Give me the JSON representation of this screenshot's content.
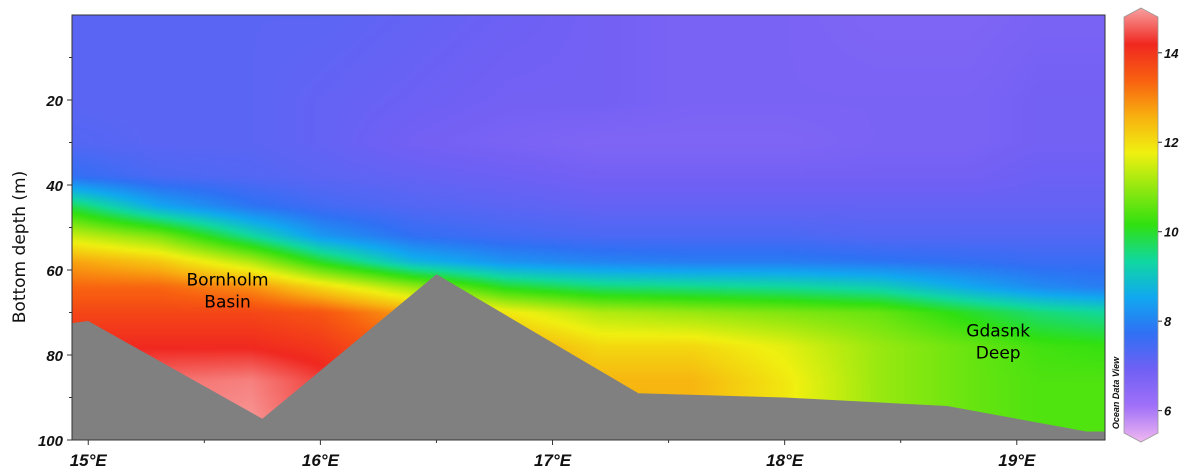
{
  "chart_data": {
    "type": "heatmap",
    "title": "",
    "xlabel": "",
    "ylabel": "Bottom depth (m)",
    "xlim": [
      14.93,
      19.38
    ],
    "ylim": [
      100,
      0
    ],
    "x_ticks": [
      {
        "value": 15,
        "label": "15°E"
      },
      {
        "value": 16,
        "label": "16°E"
      },
      {
        "value": 17,
        "label": "17°E"
      },
      {
        "value": 18,
        "label": "18°E"
      },
      {
        "value": 19,
        "label": "19°E"
      }
    ],
    "y_ticks": [
      {
        "value": 20,
        "label": "20"
      },
      {
        "value": 40,
        "label": "40"
      },
      {
        "value": 60,
        "label": "60"
      },
      {
        "value": 80,
        "label": "80"
      },
      {
        "value": 100,
        "label": "100"
      }
    ],
    "colorbar": {
      "range": [
        5.5,
        14.8
      ],
      "ticks": [
        {
          "value": 6,
          "label": "6"
        },
        {
          "value": 8,
          "label": "8"
        },
        {
          "value": 10,
          "label": "10"
        },
        {
          "value": 12,
          "label": "12"
        },
        {
          "value": 14,
          "label": "14"
        }
      ],
      "colors": [
        "#f0b8f0",
        "#a070f8",
        "#7060f4",
        "#3070f4",
        "#10a8f0",
        "#10d8a0",
        "#30e010",
        "#90e810",
        "#f0f010",
        "#f8b010",
        "#f86010",
        "#f02820",
        "#f8a0a0"
      ]
    },
    "field": {
      "columns_lon": [
        14.93,
        15.3,
        15.7,
        16.0,
        16.4,
        16.8,
        17.2,
        17.6,
        18.0,
        18.4,
        18.8,
        19.1,
        19.38
      ],
      "layers": [
        {
          "depth": 0,
          "values": [
            7.3,
            7.3,
            7.3,
            7.3,
            7.2,
            7.1,
            7.0,
            6.9,
            6.9,
            6.8,
            6.8,
            6.9,
            6.9
          ]
        },
        {
          "depth": 20,
          "values": [
            7.3,
            7.3,
            7.3,
            7.2,
            7.1,
            7.0,
            7.0,
            6.9,
            6.9,
            6.9,
            6.9,
            7.0,
            7.0
          ]
        },
        {
          "depth": 30,
          "values": [
            7.4,
            7.3,
            7.3,
            7.2,
            7.0,
            6.9,
            6.8,
            6.8,
            6.8,
            6.9,
            6.9,
            7.0,
            7.0
          ]
        },
        {
          "depth": 38,
          "values": [
            7.8,
            7.5,
            7.4,
            7.3,
            7.2,
            7.1,
            7.0,
            7.0,
            7.0,
            7.0,
            7.0,
            7.1,
            7.1
          ]
        },
        {
          "depth": 45,
          "values": [
            9.8,
            8.6,
            7.9,
            7.6,
            7.4,
            7.3,
            7.2,
            7.2,
            7.2,
            7.2,
            7.2,
            7.2,
            7.2
          ]
        },
        {
          "depth": 52,
          "values": [
            11.4,
            10.8,
            9.4,
            8.4,
            7.8,
            7.6,
            7.5,
            7.5,
            7.5,
            7.4,
            7.4,
            7.4,
            7.4
          ]
        },
        {
          "depth": 58,
          "values": [
            12.6,
            12.2,
            11.2,
            10.0,
            8.8,
            8.3,
            8.1,
            8.0,
            8.0,
            7.9,
            7.8,
            7.7,
            7.7
          ]
        },
        {
          "depth": 64,
          "values": [
            13.2,
            13.2,
            12.8,
            12.0,
            11.0,
            10.0,
            9.6,
            9.5,
            9.4,
            9.2,
            8.6,
            8.2,
            8.0
          ]
        },
        {
          "depth": 70,
          "values": [
            13.6,
            13.6,
            13.6,
            13.4,
            12.6,
            11.8,
            11.2,
            11.0,
            10.8,
            10.6,
            10.0,
            9.6,
            9.4
          ]
        },
        {
          "depth": 78,
          "values": [
            14.0,
            14.0,
            14.0,
            13.8,
            13.2,
            12.6,
            12.0,
            12.0,
            11.6,
            11.0,
            10.6,
            10.3,
            10.2
          ]
        },
        {
          "depth": 86,
          "values": [
            14.3,
            14.5,
            14.6,
            14.2,
            13.4,
            12.8,
            12.4,
            12.4,
            11.8,
            11.0,
            10.6,
            10.4,
            10.4
          ]
        },
        {
          "depth": 100,
          "values": [
            14.4,
            14.7,
            14.8,
            14.3,
            13.4,
            12.8,
            12.5,
            12.4,
            11.8,
            11.0,
            10.6,
            10.4,
            10.4
          ]
        }
      ]
    },
    "bathymetry": [
      {
        "lon": 14.93,
        "depth": 72.5
      },
      {
        "lon": 15.0,
        "depth": 72
      },
      {
        "lon": 15.75,
        "depth": 95
      },
      {
        "lon": 16.5,
        "depth": 61
      },
      {
        "lon": 17.37,
        "depth": 89
      },
      {
        "lon": 18.0,
        "depth": 90
      },
      {
        "lon": 18.7,
        "depth": 92
      },
      {
        "lon": 19.3,
        "depth": 98
      },
      {
        "lon": 19.38,
        "depth": 98
      }
    ],
    "annotations": [
      {
        "lines": [
          "Bornholm",
          "Basin"
        ],
        "lon": 15.6,
        "depth": 66
      },
      {
        "lines": [
          "Gdasnk",
          "Deep"
        ],
        "lon": 18.92,
        "depth": 78
      }
    ],
    "watermark": "Ocean Data View"
  }
}
